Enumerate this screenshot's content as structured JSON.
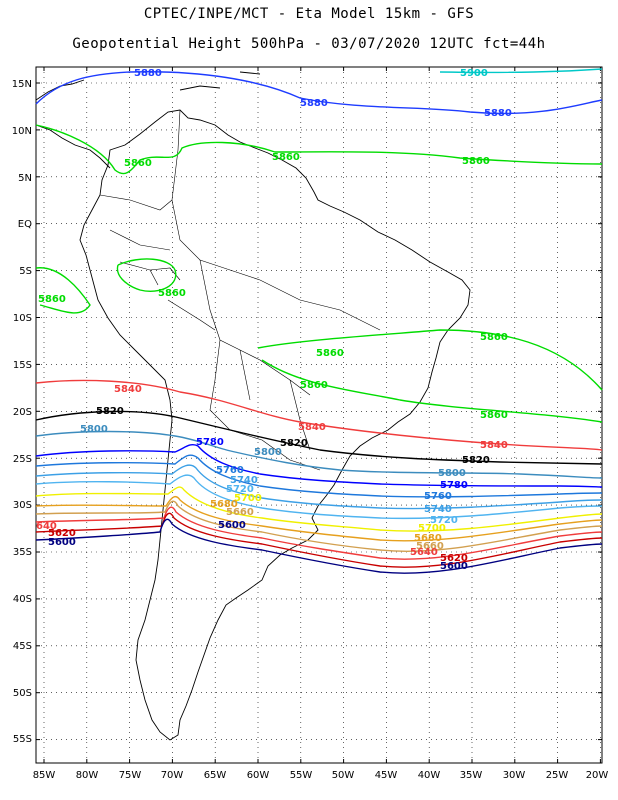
{
  "header": {
    "title_line1": "CPTEC/INPE/MCT -  Eta Model 15km - GFS",
    "title_line2": "Geopotential Height 500hPa - 03/07/2020 12UTC fct=44h"
  },
  "axes": {
    "lat_labels": [
      "15N",
      "10N",
      "5N",
      "EQ",
      "5S",
      "10S",
      "15S",
      "20S",
      "25S",
      "30S",
      "35S",
      "40S",
      "45S",
      "50S",
      "55S"
    ],
    "lon_labels": [
      "85W",
      "80W",
      "75W",
      "70W",
      "65W",
      "60W",
      "55W",
      "50W",
      "45W",
      "40W",
      "35W",
      "30W",
      "25W",
      "20W"
    ]
  },
  "contour_labels": {
    "c5900": "5900",
    "c5880": "5880",
    "c5860": "5860",
    "c5840": "5840",
    "c5820": "5820",
    "c5800": "5800",
    "c5780": "5780",
    "c5760": "5760",
    "c5740": "5740",
    "c5720": "5720",
    "c5700": "5700",
    "c5680": "5680",
    "c5660": "5660",
    "c5640": "5640",
    "c5620": "5620",
    "c5600": "5600",
    "edge_5640": "640"
  },
  "colors": {
    "c5900": "#00c8c8",
    "c5880": "#1e3cff",
    "c5860": "#00dc00",
    "c5840": "#f03c3c",
    "c5820": "#000000",
    "c5800": "#3c8cbe",
    "c5780": "#0000ff",
    "c5760": "#1e78dc",
    "c5740": "#3ca0e6",
    "c5720": "#50b4f0",
    "c5700": "#f0f000",
    "c5680": "#e6a01e",
    "c5660": "#d2a050",
    "c5640": "#f03c3c",
    "c5620": "#c80000",
    "c5600": "#000080"
  }
}
